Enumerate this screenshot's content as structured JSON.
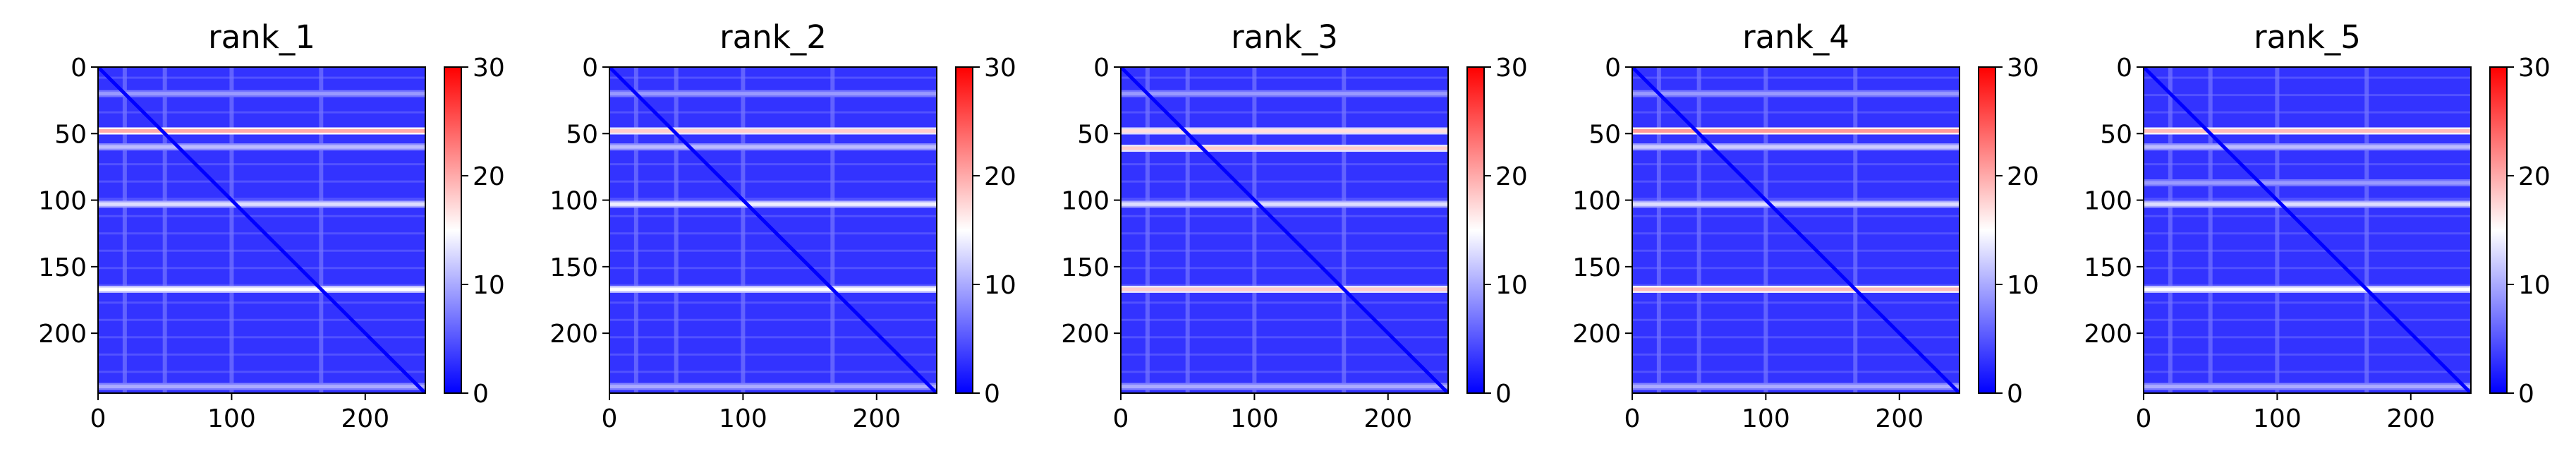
{
  "chart_data": [
    {
      "type": "heatmap",
      "title": "rank_1",
      "xlim": [
        0,
        245
      ],
      "ylim": [
        245,
        0
      ],
      "xticks": [
        0,
        100,
        200
      ],
      "xtick_labels": [
        "0",
        "100",
        "200"
      ],
      "yticks": [
        0,
        50,
        100,
        150,
        200
      ],
      "ytick_labels": [
        "0",
        "50",
        "100",
        "150",
        "200"
      ],
      "colormap": [
        "#0000ff",
        "#ffffff",
        "#ff0000"
      ],
      "colorbar": {
        "min": 0,
        "max": 30,
        "ticks": [
          0,
          10,
          20,
          30
        ],
        "tick_labels": [
          "0",
          "10",
          "20",
          "30"
        ]
      },
      "bright_rows": [
        {
          "row": 48,
          "value": 20
        },
        {
          "row": 60,
          "value": 11
        },
        {
          "row": 103,
          "value": 13
        },
        {
          "row": 167,
          "value": 15
        },
        {
          "row": 20,
          "value": 9
        },
        {
          "row": 240,
          "value": 10
        }
      ],
      "bright_cols": [
        20,
        50,
        100,
        167
      ]
    },
    {
      "type": "heatmap",
      "title": "rank_2",
      "xlim": [
        0,
        245
      ],
      "ylim": [
        245,
        0
      ],
      "xticks": [
        0,
        100,
        200
      ],
      "xtick_labels": [
        "0",
        "100",
        "200"
      ],
      "yticks": [
        0,
        50,
        100,
        150,
        200
      ],
      "ytick_labels": [
        "0",
        "50",
        "100",
        "150",
        "200"
      ],
      "colormap": [
        "#0000ff",
        "#ffffff",
        "#ff0000"
      ],
      "colorbar": {
        "min": 0,
        "max": 30,
        "ticks": [
          0,
          10,
          20,
          30
        ],
        "tick_labels": [
          "0",
          "10",
          "20",
          "30"
        ]
      },
      "bright_rows": [
        {
          "row": 48,
          "value": 18
        },
        {
          "row": 60,
          "value": 11
        },
        {
          "row": 103,
          "value": 14
        },
        {
          "row": 167,
          "value": 15
        },
        {
          "row": 20,
          "value": 9
        },
        {
          "row": 240,
          "value": 10
        }
      ],
      "bright_cols": [
        20,
        50,
        100,
        167
      ]
    },
    {
      "type": "heatmap",
      "title": "rank_3",
      "xlim": [
        0,
        245
      ],
      "ylim": [
        245,
        0
      ],
      "xticks": [
        0,
        100,
        200
      ],
      "xtick_labels": [
        "0",
        "100",
        "200"
      ],
      "yticks": [
        0,
        50,
        100,
        150,
        200
      ],
      "ytick_labels": [
        "0",
        "50",
        "100",
        "150",
        "200"
      ],
      "colormap": [
        "#0000ff",
        "#ffffff",
        "#ff0000"
      ],
      "colorbar": {
        "min": 0,
        "max": 30,
        "ticks": [
          0,
          10,
          20,
          30
        ],
        "tick_labels": [
          "0",
          "10",
          "20",
          "30"
        ]
      },
      "bright_rows": [
        {
          "row": 48,
          "value": 17
        },
        {
          "row": 61,
          "value": 18
        },
        {
          "row": 103,
          "value": 13
        },
        {
          "row": 167,
          "value": 18
        },
        {
          "row": 20,
          "value": 9
        },
        {
          "row": 240,
          "value": 10
        }
      ],
      "bright_cols": [
        20,
        50,
        100,
        167
      ]
    },
    {
      "type": "heatmap",
      "title": "rank_4",
      "xlim": [
        0,
        245
      ],
      "ylim": [
        245,
        0
      ],
      "xticks": [
        0,
        100,
        200
      ],
      "xtick_labels": [
        "0",
        "100",
        "200"
      ],
      "yticks": [
        0,
        50,
        100,
        150,
        200
      ],
      "ytick_labels": [
        "0",
        "50",
        "100",
        "150",
        "200"
      ],
      "colormap": [
        "#0000ff",
        "#ffffff",
        "#ff0000"
      ],
      "colorbar": {
        "min": 0,
        "max": 30,
        "ticks": [
          0,
          10,
          20,
          30
        ],
        "tick_labels": [
          "0",
          "10",
          "20",
          "30"
        ]
      },
      "bright_rows": [
        {
          "row": 48,
          "value": 21
        },
        {
          "row": 60,
          "value": 12
        },
        {
          "row": 103,
          "value": 13
        },
        {
          "row": 167,
          "value": 19
        },
        {
          "row": 20,
          "value": 9
        },
        {
          "row": 240,
          "value": 10
        }
      ],
      "bright_cols": [
        20,
        50,
        100,
        167
      ]
    },
    {
      "type": "heatmap",
      "title": "rank_5",
      "xlim": [
        0,
        245
      ],
      "ylim": [
        245,
        0
      ],
      "xticks": [
        0,
        100,
        200
      ],
      "xtick_labels": [
        "0",
        "100",
        "200"
      ],
      "yticks": [
        0,
        50,
        100,
        150,
        200
      ],
      "ytick_labels": [
        "0",
        "50",
        "100",
        "150",
        "200"
      ],
      "colormap": [
        "#0000ff",
        "#ffffff",
        "#ff0000"
      ],
      "colorbar": {
        "min": 0,
        "max": 30,
        "ticks": [
          0,
          10,
          20,
          30
        ],
        "tick_labels": [
          "0",
          "10",
          "20",
          "30"
        ]
      },
      "bright_rows": [
        {
          "row": 48,
          "value": 19
        },
        {
          "row": 60,
          "value": 11
        },
        {
          "row": 103,
          "value": 13
        },
        {
          "row": 167,
          "value": 15
        },
        {
          "row": 87,
          "value": 9
        },
        {
          "row": 240,
          "value": 10
        }
      ],
      "bright_cols": [
        20,
        50,
        100,
        167
      ]
    }
  ]
}
